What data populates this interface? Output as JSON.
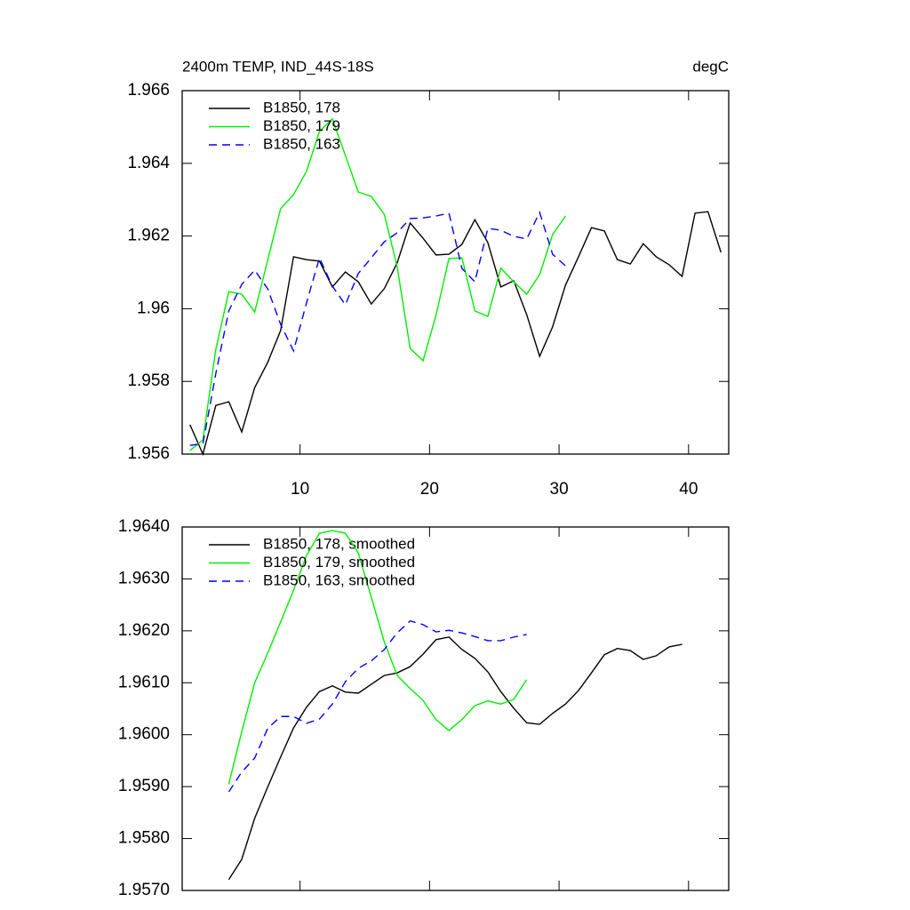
{
  "chart_data": [
    {
      "type": "line",
      "title": "2400m TEMP, IND_44S-18S",
      "subtitle": "degC",
      "legend": "upper left",
      "xlim": [
        0.9,
        43.1
      ],
      "xticks": [
        10,
        20,
        30,
        40
      ],
      "ylim": [
        1.956,
        1.966
      ],
      "yticks": [
        1.956,
        1.958,
        1.96,
        1.962,
        1.964,
        1.966
      ],
      "series": [
        {
          "name": "B1850, 178",
          "color": "#000000",
          "dash": false,
          "x": [
            1.5,
            2.5,
            3.5,
            4.5,
            5.5,
            6.5,
            7.5,
            8.5,
            9.5,
            10.5,
            11.5,
            12.5,
            13.5,
            14.5,
            15.5,
            16.5,
            17.5,
            18.5,
            19.5,
            20.5,
            21.5,
            22.5,
            23.5,
            24.5,
            25.5,
            26.5,
            27.5,
            28.5,
            29.5,
            30.5,
            31.5,
            32.5,
            33.5,
            34.5,
            35.5,
            36.5,
            37.5,
            38.5,
            39.5,
            40.5,
            41.5,
            42.5
          ],
          "values": [
            1.95681,
            1.956,
            1.95734,
            1.95744,
            1.95661,
            1.95783,
            1.95852,
            1.9594,
            1.96143,
            1.96135,
            1.96131,
            1.9606,
            1.96101,
            1.96074,
            1.96013,
            1.96055,
            1.96126,
            1.96236,
            1.96194,
            1.96148,
            1.9615,
            1.96177,
            1.96245,
            1.96182,
            1.9606,
            1.96077,
            1.95984,
            1.95869,
            1.9595,
            1.96065,
            1.96143,
            1.96223,
            1.96214,
            1.96135,
            1.96123,
            1.96179,
            1.96143,
            1.96121,
            1.96089,
            1.96263,
            1.96267,
            1.96155
          ]
        },
        {
          "name": "B1850, 179",
          "color": "#00ee00",
          "dash": false,
          "x": [
            1.5,
            2.5,
            3.5,
            4.5,
            5.5,
            6.5,
            7.5,
            8.5,
            9.5,
            10.5,
            11.5,
            12.5,
            13.5,
            14.5,
            15.5,
            16.5,
            17.5,
            18.5,
            19.5,
            20.5,
            21.5,
            22.5,
            23.5,
            24.5,
            25.5,
            26.5,
            27.5,
            28.5,
            29.5,
            30.5
          ],
          "values": [
            1.9561,
            1.95639,
            1.95889,
            1.96047,
            1.9604,
            1.95991,
            1.96133,
            1.96275,
            1.96314,
            1.96378,
            1.96488,
            1.96522,
            1.96422,
            1.96321,
            1.96309,
            1.9626,
            1.96116,
            1.95891,
            1.95857,
            1.95982,
            1.96138,
            1.9614,
            1.95994,
            1.95979,
            1.96112,
            1.96074,
            1.9604,
            1.96094,
            1.96204,
            1.96255
          ]
        },
        {
          "name": "B1850, 163",
          "color": "#0000ff",
          "dash": true,
          "x": [
            1.5,
            2.5,
            3.5,
            4.5,
            5.5,
            6.5,
            7.5,
            8.5,
            9.5,
            10.5,
            11.5,
            12.5,
            13.5,
            14.5,
            15.5,
            16.5,
            17.5,
            18.5,
            19.5,
            20.5,
            21.5,
            22.5,
            23.5,
            24.5,
            25.5,
            26.5,
            27.5,
            28.5,
            29.5,
            30.5
          ],
          "values": [
            1.95624,
            1.95629,
            1.95822,
            1.95994,
            1.96067,
            1.96106,
            1.96055,
            1.95957,
            1.95884,
            1.96016,
            1.9614,
            1.96062,
            1.96011,
            1.96097,
            1.9614,
            1.96184,
            1.96209,
            1.96248,
            1.9625,
            1.96255,
            1.96263,
            1.96111,
            1.96074,
            1.96221,
            1.96216,
            1.96199,
            1.96192,
            1.96265,
            1.9615,
            1.96118
          ]
        }
      ]
    },
    {
      "type": "line",
      "legend": "upper left",
      "xlim": [
        0.9,
        43.1
      ],
      "xticks": [
        10,
        20,
        30,
        40
      ],
      "ylim": [
        1.957,
        1.964
      ],
      "yticks": [
        {
          "value": 1.957,
          "label": "1.9570"
        },
        {
          "value": 1.958,
          "label": "1.9580"
        },
        {
          "value": 1.959,
          "label": "1.9590"
        },
        {
          "value": 1.96,
          "label": "1.9600"
        },
        {
          "value": 1.961,
          "label": "1.9610"
        },
        {
          "value": 1.962,
          "label": "1.9620"
        },
        {
          "value": 1.963,
          "label": "1.9630"
        },
        {
          "value": 1.964,
          "label": "1.9640"
        }
      ],
      "series": [
        {
          "name": "B1850, 178, smoothed",
          "color": "#000000",
          "dash": false,
          "x": [
            4.5,
            5.5,
            6.5,
            7.5,
            8.5,
            9.5,
            10.5,
            11.5,
            12.5,
            13.5,
            14.5,
            15.5,
            16.5,
            17.5,
            18.5,
            19.5,
            20.5,
            21.5,
            22.5,
            23.5,
            24.5,
            25.5,
            26.5,
            27.5,
            28.5,
            29.5,
            30.5,
            31.5,
            32.5,
            33.5,
            34.5,
            35.5,
            36.5,
            37.5,
            38.5,
            39.5
          ],
          "values": [
            1.95721,
            1.9576,
            1.95839,
            1.95899,
            1.95957,
            1.96013,
            1.96053,
            1.96083,
            1.96094,
            1.96082,
            1.9608,
            1.96097,
            1.96114,
            1.96119,
            1.96131,
            1.96155,
            1.96183,
            1.96188,
            1.96164,
            1.96147,
            1.96121,
            1.96083,
            1.96051,
            1.96023,
            1.9602,
            1.96041,
            1.96059,
            1.96085,
            1.96119,
            1.96154,
            1.96166,
            1.96162,
            1.96145,
            1.96152,
            1.96169,
            1.96174
          ]
        },
        {
          "name": "B1850, 179, smoothed",
          "color": "#00ee00",
          "dash": false,
          "x": [
            4.5,
            5.5,
            6.5,
            7.5,
            8.5,
            9.5,
            10.5,
            11.5,
            12.5,
            13.5,
            14.5,
            15.5,
            16.5,
            17.5,
            18.5,
            19.5,
            20.5,
            21.5,
            22.5,
            23.5,
            24.5,
            25.5,
            26.5,
            27.5
          ],
          "values": [
            1.95905,
            1.96006,
            1.961,
            1.96157,
            1.96217,
            1.96278,
            1.96345,
            1.96388,
            1.96393,
            1.96388,
            1.9635,
            1.96265,
            1.96179,
            1.96114,
            1.96089,
            1.96066,
            1.96029,
            1.96008,
            1.96029,
            1.96056,
            1.96065,
            1.96059,
            1.96068,
            1.96106
          ]
        },
        {
          "name": "B1850, 163, smoothed",
          "color": "#0000ff",
          "dash": true,
          "x": [
            4.5,
            5.5,
            6.5,
            7.5,
            8.5,
            9.5,
            10.5,
            11.5,
            12.5,
            13.5,
            14.5,
            15.5,
            16.5,
            17.5,
            18.5,
            19.5,
            20.5,
            21.5,
            22.5,
            23.5,
            24.5,
            25.5,
            26.5,
            27.5
          ],
          "values": [
            1.9589,
            1.95928,
            1.95955,
            1.96012,
            1.96035,
            1.96035,
            1.96022,
            1.9603,
            1.96059,
            1.96102,
            1.96128,
            1.96142,
            1.96164,
            1.96196,
            1.96219,
            1.96212,
            1.96198,
            1.96201,
            1.96196,
            1.96189,
            1.96181,
            1.96181,
            1.96188,
            1.96193
          ]
        }
      ]
    }
  ]
}
